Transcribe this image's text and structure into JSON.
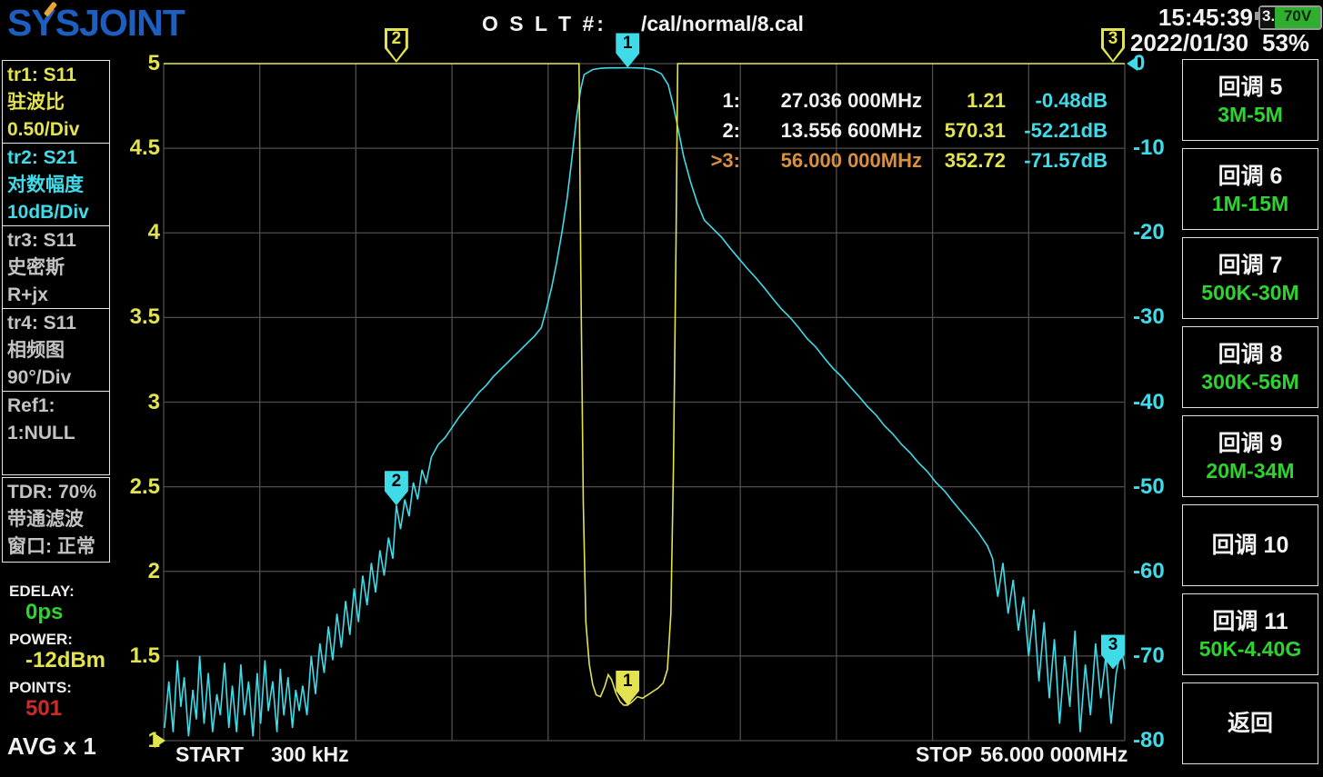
{
  "colors": {
    "yellow": "#e3e34f",
    "cyan": "#3fdbe8",
    "green": "#2fd32f",
    "red": "#cf2a2a",
    "orange": "#d98f3f",
    "blue_logo": "#1d5fc0",
    "accent_orange": "#e8a434",
    "grid": "#4e4e4e",
    "battery_green": "#2fae2f"
  },
  "header": {
    "logo": "SYSJOINT",
    "cal_label": "O S L T #:",
    "cal_path": "/cal/normal/8.cal",
    "time": "15:45:39",
    "date": "2022/01/30",
    "battery_int": "3.",
    "battery_frac": "70V",
    "battery_percent": "53%"
  },
  "sidebar": {
    "boxes": [
      {
        "id": "tr1",
        "lines": [
          "tr1:   S11",
          "驻波比",
          "0.50/Div"
        ]
      },
      {
        "id": "tr2",
        "lines": [
          "tr2:   S21",
          "对数幅度",
          "10dB/Div"
        ]
      },
      {
        "id": "tr3",
        "lines": [
          "tr3:   S11",
          "史密斯",
          "R+jx"
        ]
      },
      {
        "id": "tr4",
        "lines": [
          "tr4:   S11",
          "相频图",
          "90°/Div"
        ]
      },
      {
        "id": "ref1",
        "lines": [
          "Ref1:",
          "1:NULL",
          ""
        ]
      },
      {
        "id": "tdr",
        "lines": [
          "TDR: 70%",
          "带通滤波",
          "窗口: 正常"
        ]
      }
    ],
    "edelay_label": "EDELAY:",
    "edelay_value": "0ps",
    "power_label": "POWER:",
    "power_value": "-12dBm",
    "points_label": "POINTS:",
    "points_value": "501",
    "avg": "AVG x 1"
  },
  "footer": {
    "start_label": "START",
    "start_value": "300 kHz",
    "stop_label": "STOP",
    "stop_value": "56.000 000MHz"
  },
  "buttons": [
    {
      "title": "回调 5",
      "range": "3M-5M"
    },
    {
      "title": "回调 6",
      "range": "1M-15M"
    },
    {
      "title": "回调 7",
      "range": "500K-30M"
    },
    {
      "title": "回调 8",
      "range": "300K-56M"
    },
    {
      "title": "回调 9",
      "range": "20M-34M"
    },
    {
      "title": "回调 10",
      "range": ""
    },
    {
      "title": "回调 11",
      "range": "50K-4.40G"
    },
    {
      "title": "返回",
      "range": ""
    }
  ],
  "readouts": [
    {
      "label": "1:",
      "freq": "27.036 000MHz",
      "val": "1.21",
      "db": "-0.48dB"
    },
    {
      "label": "2:",
      "freq": "13.556 600MHz",
      "val": "570.31",
      "db": "-52.21dB"
    },
    {
      "label": ">3:",
      "freq": "56.000 000MHz",
      "val": "352.72",
      "db": "-71.57dB"
    }
  ],
  "chart_data": {
    "type": "line",
    "x_axis": {
      "start_mhz": 0.0003,
      "stop_mhz": 56.0,
      "start_text": "300 kHz",
      "stop_text": "56.000 000MHz",
      "divisions": 10,
      "grid": true
    },
    "y_axis_left": {
      "label": "SWR tr1 S11",
      "min": 1,
      "max": 5,
      "per_div": 0.5,
      "ticks": [
        "5",
        "4.5",
        "4",
        "3.5",
        "3",
        "2.5",
        "2",
        "1.5",
        "1"
      ]
    },
    "y_axis_right": {
      "label": "dB tr2 S21",
      "min": -80,
      "max": 0,
      "per_div": 10,
      "ticks": [
        "0",
        "-10",
        "-20",
        "-30",
        "-40",
        "-50",
        "-60",
        "-70",
        "-80"
      ]
    },
    "markers": [
      {
        "num": "1",
        "freq_mhz": 27.036,
        "swr": 1.21,
        "db": -0.48,
        "active": false
      },
      {
        "num": "2",
        "freq_mhz": 13.5566,
        "swr": 570.31,
        "db": -52.21,
        "active": false
      },
      {
        "num": "3",
        "freq_mhz": 56.0,
        "swr": 352.72,
        "db": -71.57,
        "active": true
      }
    ],
    "series": [
      {
        "name": "S21 log magnitude",
        "color": "#3fdbe8",
        "axis": "right",
        "points": [
          [
            0.05,
            -78.5
          ],
          [
            0.3,
            -73
          ],
          [
            0.55,
            -79
          ],
          [
            0.8,
            -70.5
          ],
          [
            1.0,
            -76
          ],
          [
            1.2,
            -72.5
          ],
          [
            1.45,
            -79.5
          ],
          [
            1.7,
            -74
          ],
          [
            1.9,
            -77.5
          ],
          [
            2.1,
            -70
          ],
          [
            2.35,
            -78
          ],
          [
            2.6,
            -72
          ],
          [
            2.85,
            -79
          ],
          [
            3.1,
            -74.5
          ],
          [
            3.3,
            -77
          ],
          [
            3.55,
            -70.8
          ],
          [
            3.8,
            -78.5
          ],
          [
            4.0,
            -73.5
          ],
          [
            4.25,
            -79
          ],
          [
            4.5,
            -71
          ],
          [
            4.7,
            -77
          ],
          [
            4.95,
            -73
          ],
          [
            5.2,
            -79.5
          ],
          [
            5.45,
            -72
          ],
          [
            5.65,
            -78
          ],
          [
            5.9,
            -70.5
          ],
          [
            6.1,
            -76.5
          ],
          [
            6.35,
            -73
          ],
          [
            6.6,
            -79
          ],
          [
            6.8,
            -71.5
          ],
          [
            7.0,
            -77
          ],
          [
            7.25,
            -72.5
          ],
          [
            7.5,
            -78.5
          ],
          [
            7.7,
            -74
          ],
          [
            7.9,
            -76.5
          ],
          [
            8.1,
            -73.5
          ],
          [
            8.35,
            -77
          ],
          [
            8.6,
            -70
          ],
          [
            8.85,
            -74.5
          ],
          [
            9.1,
            -68.5
          ],
          [
            9.35,
            -72
          ],
          [
            9.6,
            -66.5
          ],
          [
            9.85,
            -70.5
          ],
          [
            10.1,
            -65
          ],
          [
            10.35,
            -69
          ],
          [
            10.6,
            -63.5
          ],
          [
            10.85,
            -67.5
          ],
          [
            11.1,
            -62
          ],
          [
            11.35,
            -66
          ],
          [
            11.6,
            -60.5
          ],
          [
            11.85,
            -64
          ],
          [
            12.1,
            -59
          ],
          [
            12.35,
            -62.5
          ],
          [
            12.6,
            -57.5
          ],
          [
            12.85,
            -60.5
          ],
          [
            13.1,
            -56
          ],
          [
            13.35,
            -58.5
          ],
          [
            13.5566,
            -52.21
          ],
          [
            13.8,
            -55
          ],
          [
            14.05,
            -51.5
          ],
          [
            14.3,
            -53.5
          ],
          [
            14.55,
            -49.5
          ],
          [
            14.8,
            -51.5
          ],
          [
            15.05,
            -48
          ],
          [
            15.3,
            -49.5
          ],
          [
            15.6,
            -46.5
          ],
          [
            16,
            -45
          ],
          [
            16.4,
            -44.2
          ],
          [
            16.8,
            -43
          ],
          [
            17.2,
            -41.8
          ],
          [
            17.6,
            -40.8
          ],
          [
            18,
            -39.8
          ],
          [
            18.4,
            -38.8
          ],
          [
            18.8,
            -38
          ],
          [
            19.2,
            -37
          ],
          [
            19.6,
            -36.2
          ],
          [
            20,
            -35.4
          ],
          [
            20.4,
            -34.6
          ],
          [
            20.8,
            -33.8
          ],
          [
            21.2,
            -33
          ],
          [
            21.6,
            -32.2
          ],
          [
            22,
            -31.2
          ],
          [
            22.3,
            -29
          ],
          [
            22.6,
            -26.5
          ],
          [
            22.9,
            -23.5
          ],
          [
            23.2,
            -20
          ],
          [
            23.5,
            -16
          ],
          [
            23.8,
            -11
          ],
          [
            24.05,
            -6.5
          ],
          [
            24.3,
            -3
          ],
          [
            24.5,
            -1.3
          ],
          [
            25,
            -0.7
          ],
          [
            25.5,
            -0.55
          ],
          [
            26,
            -0.5
          ],
          [
            26.5,
            -0.5
          ],
          [
            27.036,
            -0.48
          ],
          [
            27.5,
            -0.5
          ],
          [
            28,
            -0.55
          ],
          [
            28.5,
            -0.7
          ],
          [
            29,
            -1.2
          ],
          [
            29.4,
            -2.5
          ],
          [
            29.7,
            -5
          ],
          [
            30,
            -8
          ],
          [
            30.3,
            -11
          ],
          [
            30.7,
            -14
          ],
          [
            31.1,
            -16.5
          ],
          [
            31.5,
            -18.5
          ],
          [
            32,
            -19.5
          ],
          [
            32.5,
            -20.5
          ],
          [
            33,
            -21.8
          ],
          [
            33.5,
            -23
          ],
          [
            34,
            -24.2
          ],
          [
            34.5,
            -25.3
          ],
          [
            35,
            -26.5
          ],
          [
            35.5,
            -27.8
          ],
          [
            36,
            -29
          ],
          [
            36.5,
            -30
          ],
          [
            37,
            -31.2
          ],
          [
            37.5,
            -32.5
          ],
          [
            38,
            -33.5
          ],
          [
            38.5,
            -34.8
          ],
          [
            39,
            -36
          ],
          [
            39.5,
            -37
          ],
          [
            40,
            -38.2
          ],
          [
            40.5,
            -39.3
          ],
          [
            41,
            -40.5
          ],
          [
            41.5,
            -41.5
          ],
          [
            42,
            -42.8
          ],
          [
            42.5,
            -43.8
          ],
          [
            43,
            -45
          ],
          [
            43.5,
            -46
          ],
          [
            44,
            -47.2
          ],
          [
            44.5,
            -48.2
          ],
          [
            45,
            -49.5
          ],
          [
            45.5,
            -50.5
          ],
          [
            46,
            -51.8
          ],
          [
            46.5,
            -53
          ],
          [
            47,
            -54.2
          ],
          [
            47.5,
            -55.5
          ],
          [
            48,
            -57
          ],
          [
            48.3,
            -58.5
          ],
          [
            48.6,
            -63
          ],
          [
            48.9,
            -59
          ],
          [
            49.2,
            -65
          ],
          [
            49.5,
            -61
          ],
          [
            49.8,
            -67
          ],
          [
            50.1,
            -63
          ],
          [
            50.4,
            -70
          ],
          [
            50.7,
            -64.5
          ],
          [
            51,
            -73
          ],
          [
            51.3,
            -66
          ],
          [
            51.6,
            -75
          ],
          [
            51.9,
            -68
          ],
          [
            52.2,
            -78
          ],
          [
            52.5,
            -70
          ],
          [
            52.8,
            -76
          ],
          [
            53.1,
            -67
          ],
          [
            53.4,
            -79
          ],
          [
            53.7,
            -71
          ],
          [
            54,
            -77
          ],
          [
            54.3,
            -68.5
          ],
          [
            54.6,
            -75
          ],
          [
            54.9,
            -70
          ],
          [
            55.2,
            -78
          ],
          [
            55.5,
            -72
          ],
          [
            55.8,
            -69
          ],
          [
            56,
            -71.57
          ]
        ]
      },
      {
        "name": "S11 SWR",
        "color": "#e3e34f",
        "axis": "left",
        "points": [
          [
            0,
            5
          ],
          [
            3,
            5
          ],
          [
            6,
            5
          ],
          [
            9,
            5
          ],
          [
            12,
            5
          ],
          [
            15,
            5
          ],
          [
            18,
            5
          ],
          [
            21,
            5
          ],
          [
            23,
            5
          ],
          [
            24.2,
            5
          ],
          [
            24.3,
            3.8
          ],
          [
            24.45,
            2.4
          ],
          [
            24.6,
            1.7
          ],
          [
            24.8,
            1.45
          ],
          [
            25.0,
            1.33
          ],
          [
            25.2,
            1.27
          ],
          [
            25.45,
            1.26
          ],
          [
            25.7,
            1.32
          ],
          [
            25.9,
            1.39
          ],
          [
            26.1,
            1.36
          ],
          [
            26.35,
            1.28
          ],
          [
            26.6,
            1.23
          ],
          [
            26.8,
            1.21
          ],
          [
            27.036,
            1.21
          ],
          [
            27.3,
            1.23
          ],
          [
            27.6,
            1.26
          ],
          [
            27.9,
            1.25
          ],
          [
            28.2,
            1.27
          ],
          [
            28.5,
            1.29
          ],
          [
            28.8,
            1.31
          ],
          [
            29.1,
            1.34
          ],
          [
            29.35,
            1.42
          ],
          [
            29.55,
            1.75
          ],
          [
            29.7,
            2.6
          ],
          [
            29.85,
            3.9
          ],
          [
            29.95,
            5
          ],
          [
            30.2,
            5
          ],
          [
            33,
            5
          ],
          [
            36,
            5
          ],
          [
            39,
            5
          ],
          [
            42,
            5
          ],
          [
            45,
            5
          ],
          [
            48,
            5
          ],
          [
            51,
            5
          ],
          [
            54,
            5
          ],
          [
            56,
            5
          ]
        ]
      }
    ]
  }
}
